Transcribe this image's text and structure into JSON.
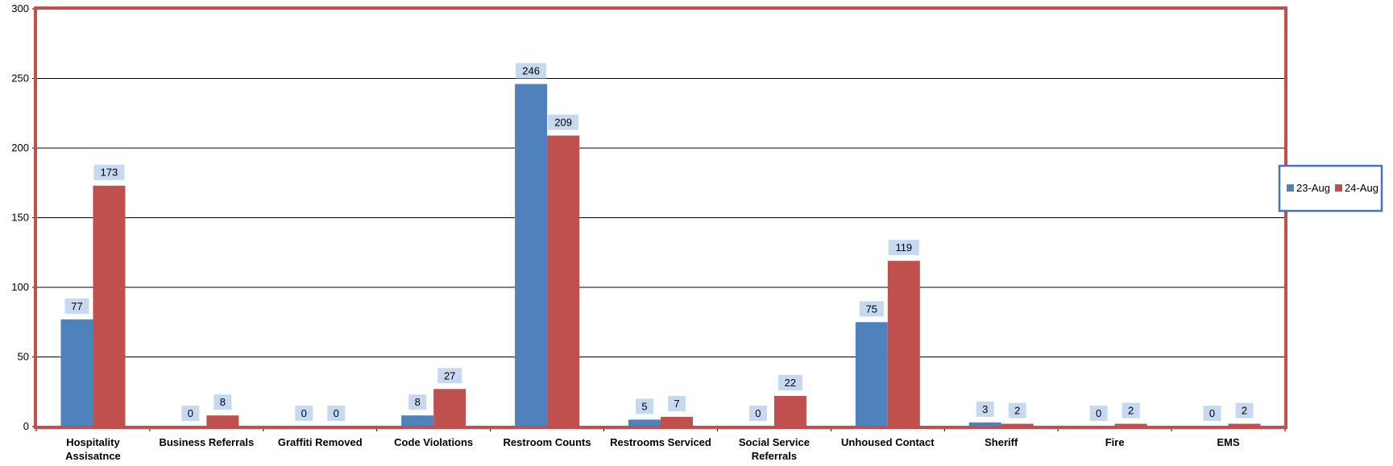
{
  "chart_data": {
    "type": "bar",
    "categories": [
      "Hospitality Assisatnce",
      "Business Referrals",
      "Graffiti Removed",
      "Code Violations",
      "Restroom Counts",
      "Restrooms Serviced",
      "Social Service Referrals",
      "Unhoused Contact",
      "Sheriff",
      "Fire",
      "EMS"
    ],
    "series": [
      {
        "name": "23-Aug",
        "color": "#4F81BD",
        "values": [
          77,
          0,
          0,
          8,
          246,
          5,
          0,
          75,
          3,
          0,
          0
        ]
      },
      {
        "name": "24-Aug",
        "color": "#C0504D",
        "values": [
          173,
          8,
          0,
          27,
          209,
          7,
          22,
          119,
          2,
          2,
          2
        ]
      }
    ],
    "ylim": [
      0,
      300
    ],
    "yticks": [
      0,
      50,
      100,
      150,
      200,
      250,
      300
    ],
    "grid": true,
    "legend_position": "right",
    "plot_border_color": "#C0504D",
    "legend_border_color": "#4472C4",
    "data_label_bg": "#C6D9F1"
  }
}
